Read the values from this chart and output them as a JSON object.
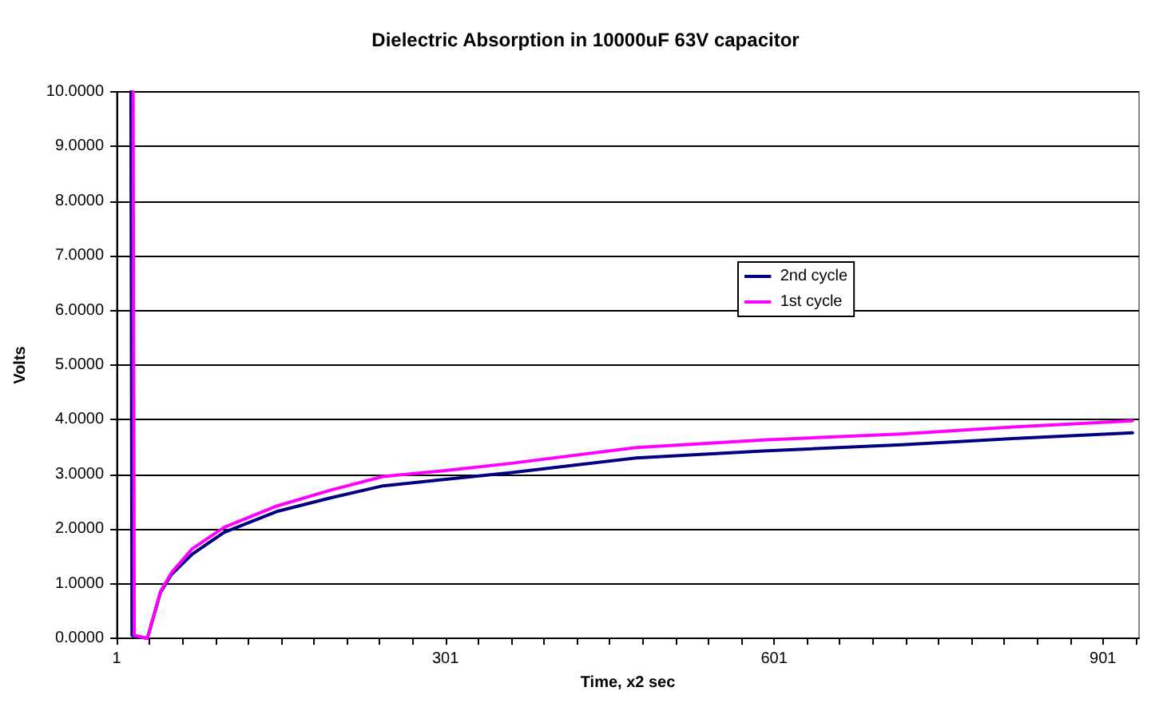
{
  "chart_data": {
    "type": "line",
    "title": "Dielectric Absorption in 10000uF 63V capacitor",
    "xlabel": "Time, x2 sec",
    "ylabel": "Volts",
    "series": [
      {
        "name": "2nd cycle",
        "color": "#000080",
        "x": [
          14,
          15,
          29,
          41,
          51,
          70,
          99,
          147,
          196,
          244,
          301,
          360,
          475,
          591,
          717,
          822,
          928
        ],
        "values": [
          10,
          0.05,
          0,
          0.84,
          1.17,
          1.54,
          1.94,
          2.32,
          2.57,
          2.79,
          2.91,
          3.03,
          3.3,
          3.43,
          3.54,
          3.66,
          3.76
        ]
      },
      {
        "name": "1st cycle",
        "color": "#ff00ff",
        "x": [
          16,
          17,
          29,
          41,
          51,
          70,
          99,
          147,
          196,
          244,
          301,
          360,
          475,
          591,
          717,
          822,
          928
        ],
        "values": [
          10,
          0.05,
          0,
          0.86,
          1.2,
          1.64,
          2.03,
          2.42,
          2.71,
          2.96,
          3.07,
          3.2,
          3.49,
          3.63,
          3.74,
          3.87,
          3.98
        ]
      }
    ],
    "xlim": [
      1,
      934
    ],
    "xticks": [
      1,
      {
        "value": 31,
        "label": null
      },
      {
        "value": 61,
        "label": null
      },
      {
        "value": 91,
        "label": null
      },
      {
        "value": 121,
        "label": null
      },
      {
        "value": 151,
        "label": null
      },
      {
        "value": 181,
        "label": null
      },
      {
        "value": 211,
        "label": null
      },
      {
        "value": 241,
        "label": null
      },
      {
        "value": 271,
        "label": null
      },
      301,
      {
        "value": 331,
        "label": null
      },
      {
        "value": 361,
        "label": null
      },
      {
        "value": 391,
        "label": null
      },
      {
        "value": 421,
        "label": null
      },
      {
        "value": 451,
        "label": null
      },
      {
        "value": 481,
        "label": null
      },
      {
        "value": 511,
        "label": null
      },
      {
        "value": 541,
        "label": null
      },
      {
        "value": 571,
        "label": null
      },
      601,
      {
        "value": 631,
        "label": null
      },
      {
        "value": 661,
        "label": null
      },
      {
        "value": 691,
        "label": null
      },
      {
        "value": 721,
        "label": null
      },
      {
        "value": 751,
        "label": null
      },
      {
        "value": 781,
        "label": null
      },
      {
        "value": 811,
        "label": null
      },
      {
        "value": 841,
        "label": null
      },
      {
        "value": 871,
        "label": null
      },
      901,
      {
        "value": 931,
        "label": null
      }
    ],
    "ylim": [
      0,
      10
    ],
    "yticks": [
      {
        "value": 0,
        "label": "0.0000"
      },
      {
        "value": 1,
        "label": "1.0000"
      },
      {
        "value": 2,
        "label": "2.0000"
      },
      {
        "value": 3,
        "label": "3.0000"
      },
      {
        "value": 4,
        "label": "4.0000"
      },
      {
        "value": 5,
        "label": "5.0000"
      },
      {
        "value": 6,
        "label": "6.0000"
      },
      {
        "value": 7,
        "label": "7.0000"
      },
      {
        "value": 8,
        "label": "8.0000"
      },
      {
        "value": 9,
        "label": "9.0000"
      },
      {
        "value": 10,
        "label": "10.0000"
      }
    ],
    "grid": "y",
    "legend": "right",
    "marker": "none",
    "line_style": "solid"
  }
}
